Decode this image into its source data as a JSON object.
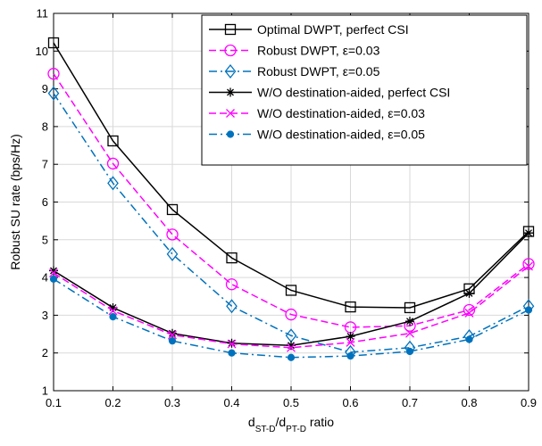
{
  "chart_data": {
    "type": "line",
    "xlabel": {
      "main": "d",
      "sub1": "ST-D",
      "mid": "/d",
      "sub2": "PT-D",
      "tail": " ratio"
    },
    "ylabel": "Robust SU rate (bps/Hz)",
    "xlim": [
      0.1,
      0.9
    ],
    "ylim": [
      1,
      11
    ],
    "xticks": [
      "0.1",
      "0.2",
      "0.3",
      "0.4",
      "0.5",
      "0.6",
      "0.7",
      "0.8",
      "0.9"
    ],
    "yticks": [
      "1",
      "2",
      "3",
      "4",
      "5",
      "6",
      "7",
      "8",
      "9",
      "10",
      "11"
    ],
    "grid": true,
    "legend_position": "top-right",
    "x": [
      0.1,
      0.2,
      0.3,
      0.4,
      0.5,
      0.6,
      0.7,
      0.8,
      0.9
    ],
    "series": [
      {
        "name": "Optimal DWPT, perfect CSI",
        "color": "#000000",
        "dash": "solid",
        "marker": "square",
        "values": [
          10.22,
          7.62,
          5.8,
          4.52,
          3.66,
          3.22,
          3.2,
          3.7,
          5.22
        ]
      },
      {
        "name": "Robust DWPT, ε=0.03",
        "color": "#ff00ff",
        "dash": "dashed",
        "marker": "circle",
        "values": [
          9.4,
          7.02,
          5.14,
          3.82,
          3.02,
          2.68,
          2.72,
          3.14,
          4.36
        ]
      },
      {
        "name": "Robust DWPT, ε=0.05",
        "color": "#0072bd",
        "dash": "dashdot",
        "marker": "diamond",
        "values": [
          8.88,
          6.5,
          4.62,
          3.24,
          2.46,
          2.02,
          2.14,
          2.44,
          3.24
        ]
      },
      {
        "name": "W/O destination-aided, perfect CSI",
        "color": "#000000",
        "dash": "solid",
        "marker": "star",
        "values": [
          4.18,
          3.2,
          2.52,
          2.26,
          2.2,
          2.44,
          2.84,
          3.58,
          5.18
        ]
      },
      {
        "name": "W/O destination-aided, ε=0.03",
        "color": "#ff00ff",
        "dash": "dashed",
        "marker": "x",
        "values": [
          4.12,
          3.12,
          2.48,
          2.24,
          2.14,
          2.28,
          2.52,
          3.06,
          4.3
        ]
      },
      {
        "name": "W/O destination-aided, ε=0.05",
        "color": "#0072bd",
        "dash": "dashdot",
        "marker": "dot",
        "values": [
          3.96,
          2.96,
          2.32,
          2.0,
          1.88,
          1.92,
          2.04,
          2.36,
          3.14
        ]
      }
    ]
  }
}
